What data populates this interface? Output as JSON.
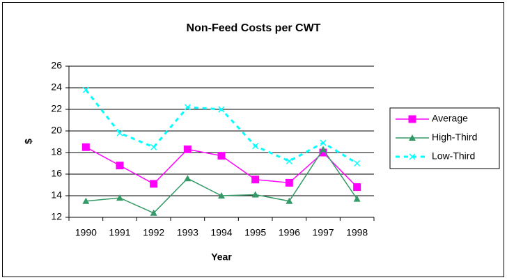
{
  "chart_data": {
    "type": "line",
    "title": "Non-Feed Costs per CWT",
    "x_label": "Year",
    "y_label": "$",
    "categories": [
      "1990",
      "1991",
      "1992",
      "1993",
      "1994",
      "1995",
      "1996",
      "1997",
      "1998"
    ],
    "series": [
      {
        "name": "Average",
        "color": "#ff00ff",
        "marker": "square",
        "dashed": false,
        "values": [
          18.5,
          16.8,
          15.1,
          18.3,
          17.7,
          15.5,
          15.2,
          18.0,
          14.8
        ]
      },
      {
        "name": "High-Third",
        "color": "#339966",
        "marker": "triangle",
        "dashed": false,
        "values": [
          13.5,
          13.8,
          12.4,
          15.6,
          14.0,
          14.1,
          13.5,
          18.3,
          13.7
        ]
      },
      {
        "name": "Low-Third",
        "color": "#00ffff",
        "marker": "x",
        "dashed": true,
        "values": [
          23.8,
          19.8,
          18.5,
          22.2,
          22.0,
          18.6,
          17.2,
          18.9,
          17.0
        ]
      }
    ],
    "ylim": [
      12,
      26
    ],
    "yticks": [
      12,
      14,
      16,
      18,
      20,
      22,
      24,
      26
    ],
    "grid": true,
    "legend": "right"
  }
}
